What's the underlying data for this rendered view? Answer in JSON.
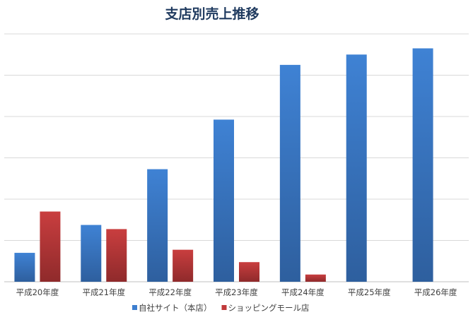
{
  "chart_data": {
    "type": "bar",
    "title": "支店別売上推移",
    "xlabel": "",
    "ylabel": "",
    "ylim": [
      0,
      12
    ],
    "grid": true,
    "legend_placement": "bottom",
    "categories": [
      "平成20年度",
      "平成21年度",
      "平成22年度",
      "平成23年度",
      "平成24年度",
      "平成25年度",
      "平成26年度"
    ],
    "series": [
      {
        "name": "自社サイト（本店）",
        "color": "#3d7ecf",
        "values": [
          1.4,
          2.75,
          5.45,
          7.85,
          10.5,
          11.0,
          11.3
        ]
      },
      {
        "name": "ショッピングモール店",
        "color": "#c0393a",
        "values": [
          3.4,
          2.55,
          1.55,
          0.95,
          0.35,
          0,
          0
        ]
      }
    ]
  }
}
